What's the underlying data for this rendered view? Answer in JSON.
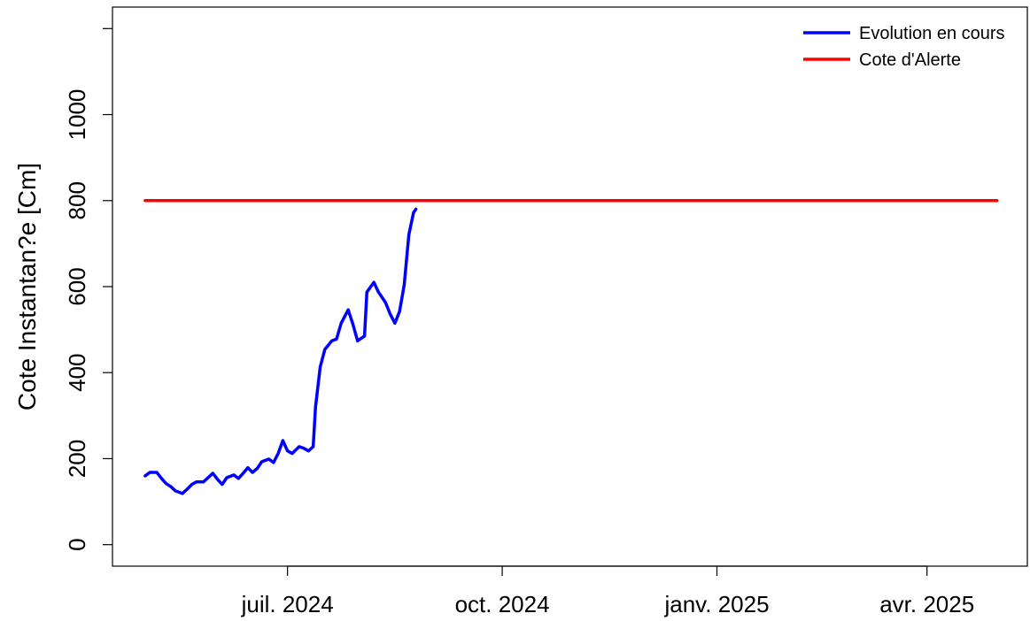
{
  "chart_data": {
    "type": "line",
    "ylabel": "Cote Instantan?e [Cm]",
    "legend": "topright",
    "xlim": [
      "2024-04-17",
      "2025-05-14"
    ],
    "xticks": [
      {
        "value": "2024-07-01",
        "label": "juil. 2024"
      },
      {
        "value": "2024-10-01",
        "label": "oct. 2024"
      },
      {
        "value": "2025-01-01",
        "label": "janv. 2025"
      },
      {
        "value": "2025-04-01",
        "label": "avr. 2025"
      }
    ],
    "ylim": [
      -50,
      1250
    ],
    "yticks": [
      0,
      200,
      400,
      600,
      800,
      1000,
      {
        "value": 1200,
        "label": null
      }
    ],
    "series": [
      {
        "name": "Evolution en cours",
        "color": "#0000ff",
        "x": [
          "2024-05-01",
          "2024-05-03",
          "2024-05-06",
          "2024-05-08",
          "2024-05-10",
          "2024-05-12",
          "2024-05-14",
          "2024-05-17",
          "2024-05-19",
          "2024-05-21",
          "2024-05-23",
          "2024-05-26",
          "2024-05-28",
          "2024-05-30",
          "2024-06-01",
          "2024-06-03",
          "2024-06-05",
          "2024-06-08",
          "2024-06-10",
          "2024-06-12",
          "2024-06-14",
          "2024-06-16",
          "2024-06-18",
          "2024-06-20",
          "2024-06-23",
          "2024-06-25",
          "2024-06-27",
          "2024-06-29",
          "2024-07-01",
          "2024-07-03",
          "2024-07-06",
          "2024-07-08",
          "2024-07-10",
          "2024-07-12",
          "2024-07-13",
          "2024-07-15",
          "2024-07-17",
          "2024-07-20",
          "2024-07-22",
          "2024-07-24",
          "2024-07-27",
          "2024-07-29",
          "2024-07-31",
          "2024-08-03",
          "2024-08-04",
          "2024-08-07",
          "2024-08-09",
          "2024-08-12",
          "2024-08-14",
          "2024-08-16",
          "2024-08-18",
          "2024-08-20",
          "2024-08-22",
          "2024-08-24",
          "2024-08-25"
        ],
        "values": [
          160,
          168,
          168,
          154,
          142,
          135,
          125,
          119,
          129,
          140,
          146,
          146,
          156,
          166,
          152,
          140,
          156,
          162,
          154,
          166,
          179,
          168,
          177,
          193,
          199,
          191,
          212,
          242,
          218,
          212,
          228,
          224,
          218,
          228,
          320,
          413,
          454,
          474,
          478,
          515,
          546,
          513,
          474,
          485,
          587,
          610,
          587,
          563,
          536,
          515,
          542,
          604,
          721,
          772,
          780
        ]
      },
      {
        "name": "Cote d'Alerte",
        "color": "#ff0000",
        "x": [
          "2024-05-01",
          "2025-05-01"
        ],
        "values": [
          800,
          800
        ]
      }
    ]
  }
}
